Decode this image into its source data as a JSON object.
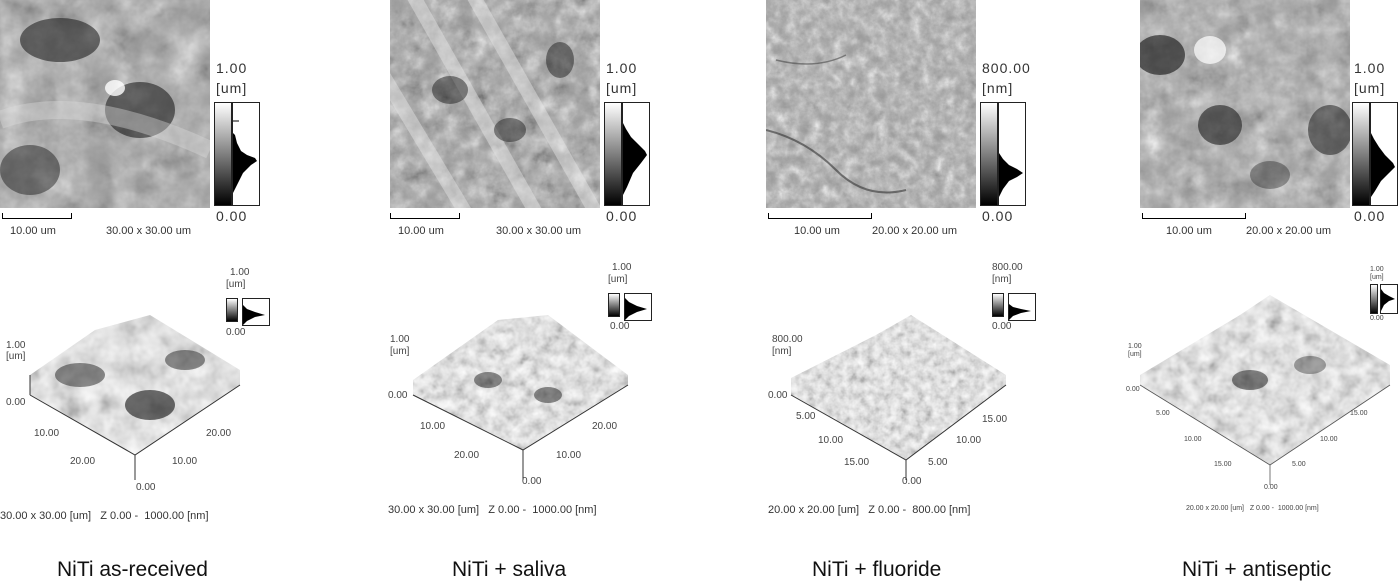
{
  "panels": [
    {
      "caption": "NiTi as-received",
      "top_scale_max": "1.00",
      "top_scale_unit": "[um]",
      "top_scale_min": "0.00",
      "scale_bar": "10.00 um",
      "scan_size": "30.00 x 30.00 um",
      "surf_scale_max": "1.00",
      "surf_scale_unit": "[um]",
      "surf_scale_min": "0.00",
      "z_max": "1.00",
      "z_unit": "[um]",
      "z_min": "0.00",
      "axis_left": [
        "10.00",
        "20.00"
      ],
      "axis_right": [
        "10.00",
        "20.00"
      ],
      "axis_origin": "0.00",
      "footer": "30.00 x 30.00 [um]   Z 0.00 -  1000.00 [nm]"
    },
    {
      "caption": "NiTi + saliva",
      "top_scale_max": "1.00",
      "top_scale_unit": "[um]",
      "top_scale_min": "0.00",
      "scale_bar": "10.00 um",
      "scan_size": "30.00 x 30.00 um",
      "surf_scale_max": "1.00",
      "surf_scale_unit": "[um]",
      "surf_scale_min": "0.00",
      "z_max": "1.00",
      "z_unit": "[um]",
      "z_min": "0.00",
      "axis_left": [
        "10.00",
        "20.00"
      ],
      "axis_right": [
        "10.00",
        "20.00"
      ],
      "axis_origin": "0.00",
      "footer": "30.00 x 30.00 [um]   Z 0.00 -  1000.00 [nm]"
    },
    {
      "caption": "NiTi + fluoride",
      "top_scale_max": "800.00",
      "top_scale_unit": "[nm]",
      "top_scale_min": "0.00",
      "scale_bar": "10.00 um",
      "scan_size": "20.00 x 20.00 um",
      "surf_scale_max": "800.00",
      "surf_scale_unit": "[nm]",
      "surf_scale_min": "0.00",
      "z_max": "800.00",
      "z_unit": "[nm]",
      "z_min": "0.00",
      "axis_left": [
        "5.00",
        "10.00",
        "15.00"
      ],
      "axis_right": [
        "5.00",
        "10.00",
        "15.00"
      ],
      "axis_origin": "0.00",
      "footer": "20.00 x 20.00 [um]   Z 0.00 -  800.00 [nm]"
    },
    {
      "caption": "NiTi + antiseptic",
      "top_scale_max": "1.00",
      "top_scale_unit": "[um]",
      "top_scale_min": "0.00",
      "scale_bar": "10.00 um",
      "scan_size": "20.00 x 20.00 um",
      "surf_scale_max": "1.00",
      "surf_scale_unit": "[um]",
      "surf_scale_min": "0.00",
      "z_max": "1.00",
      "z_unit": "[um]",
      "z_min": "0.00",
      "axis_left": [
        "5.00",
        "10.00",
        "15.00"
      ],
      "axis_right": [
        "5.00",
        "10.00",
        "15.00"
      ],
      "axis_origin": "0.00",
      "footer": "20.00 x 20.00 [um]   Z 0.00 -  1000.00 [nm]"
    }
  ]
}
